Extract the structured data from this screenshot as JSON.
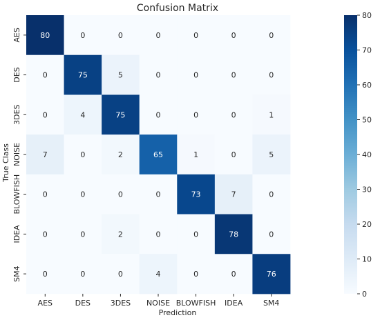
{
  "chart_data": {
    "type": "heatmap",
    "title": "Confusion Matrix",
    "xlabel": "Prediction",
    "ylabel": "True Class",
    "x_categories": [
      "AES",
      "DES",
      "3DES",
      "NOISE",
      "BLOWFISH",
      "IDEA",
      "SM4"
    ],
    "y_categories": [
      "AES",
      "DES",
      "3DES",
      "NOISE",
      "BLOWFISH",
      "IDEA",
      "SM4"
    ],
    "values": [
      [
        80,
        0,
        0,
        0,
        0,
        0,
        0
      ],
      [
        0,
        75,
        5,
        0,
        0,
        0,
        0
      ],
      [
        0,
        4,
        75,
        0,
        0,
        0,
        1
      ],
      [
        7,
        0,
        2,
        65,
        1,
        0,
        5
      ],
      [
        0,
        0,
        0,
        0,
        73,
        7,
        0
      ],
      [
        0,
        0,
        2,
        0,
        0,
        78,
        0
      ],
      [
        0,
        0,
        0,
        4,
        0,
        0,
        76
      ]
    ],
    "colorbar": {
      "range": [
        0,
        80
      ],
      "ticks": [
        0,
        10,
        20,
        30,
        40,
        50,
        60,
        70,
        80
      ]
    },
    "colormap": [
      "#f7fbff",
      "#deebf7",
      "#c6dbef",
      "#9ecae1",
      "#6baed6",
      "#4292c6",
      "#2171b5",
      "#08519c",
      "#08306b"
    ],
    "annotation_colors": {
      "dark": "#262626",
      "light": "#ffffff"
    }
  }
}
